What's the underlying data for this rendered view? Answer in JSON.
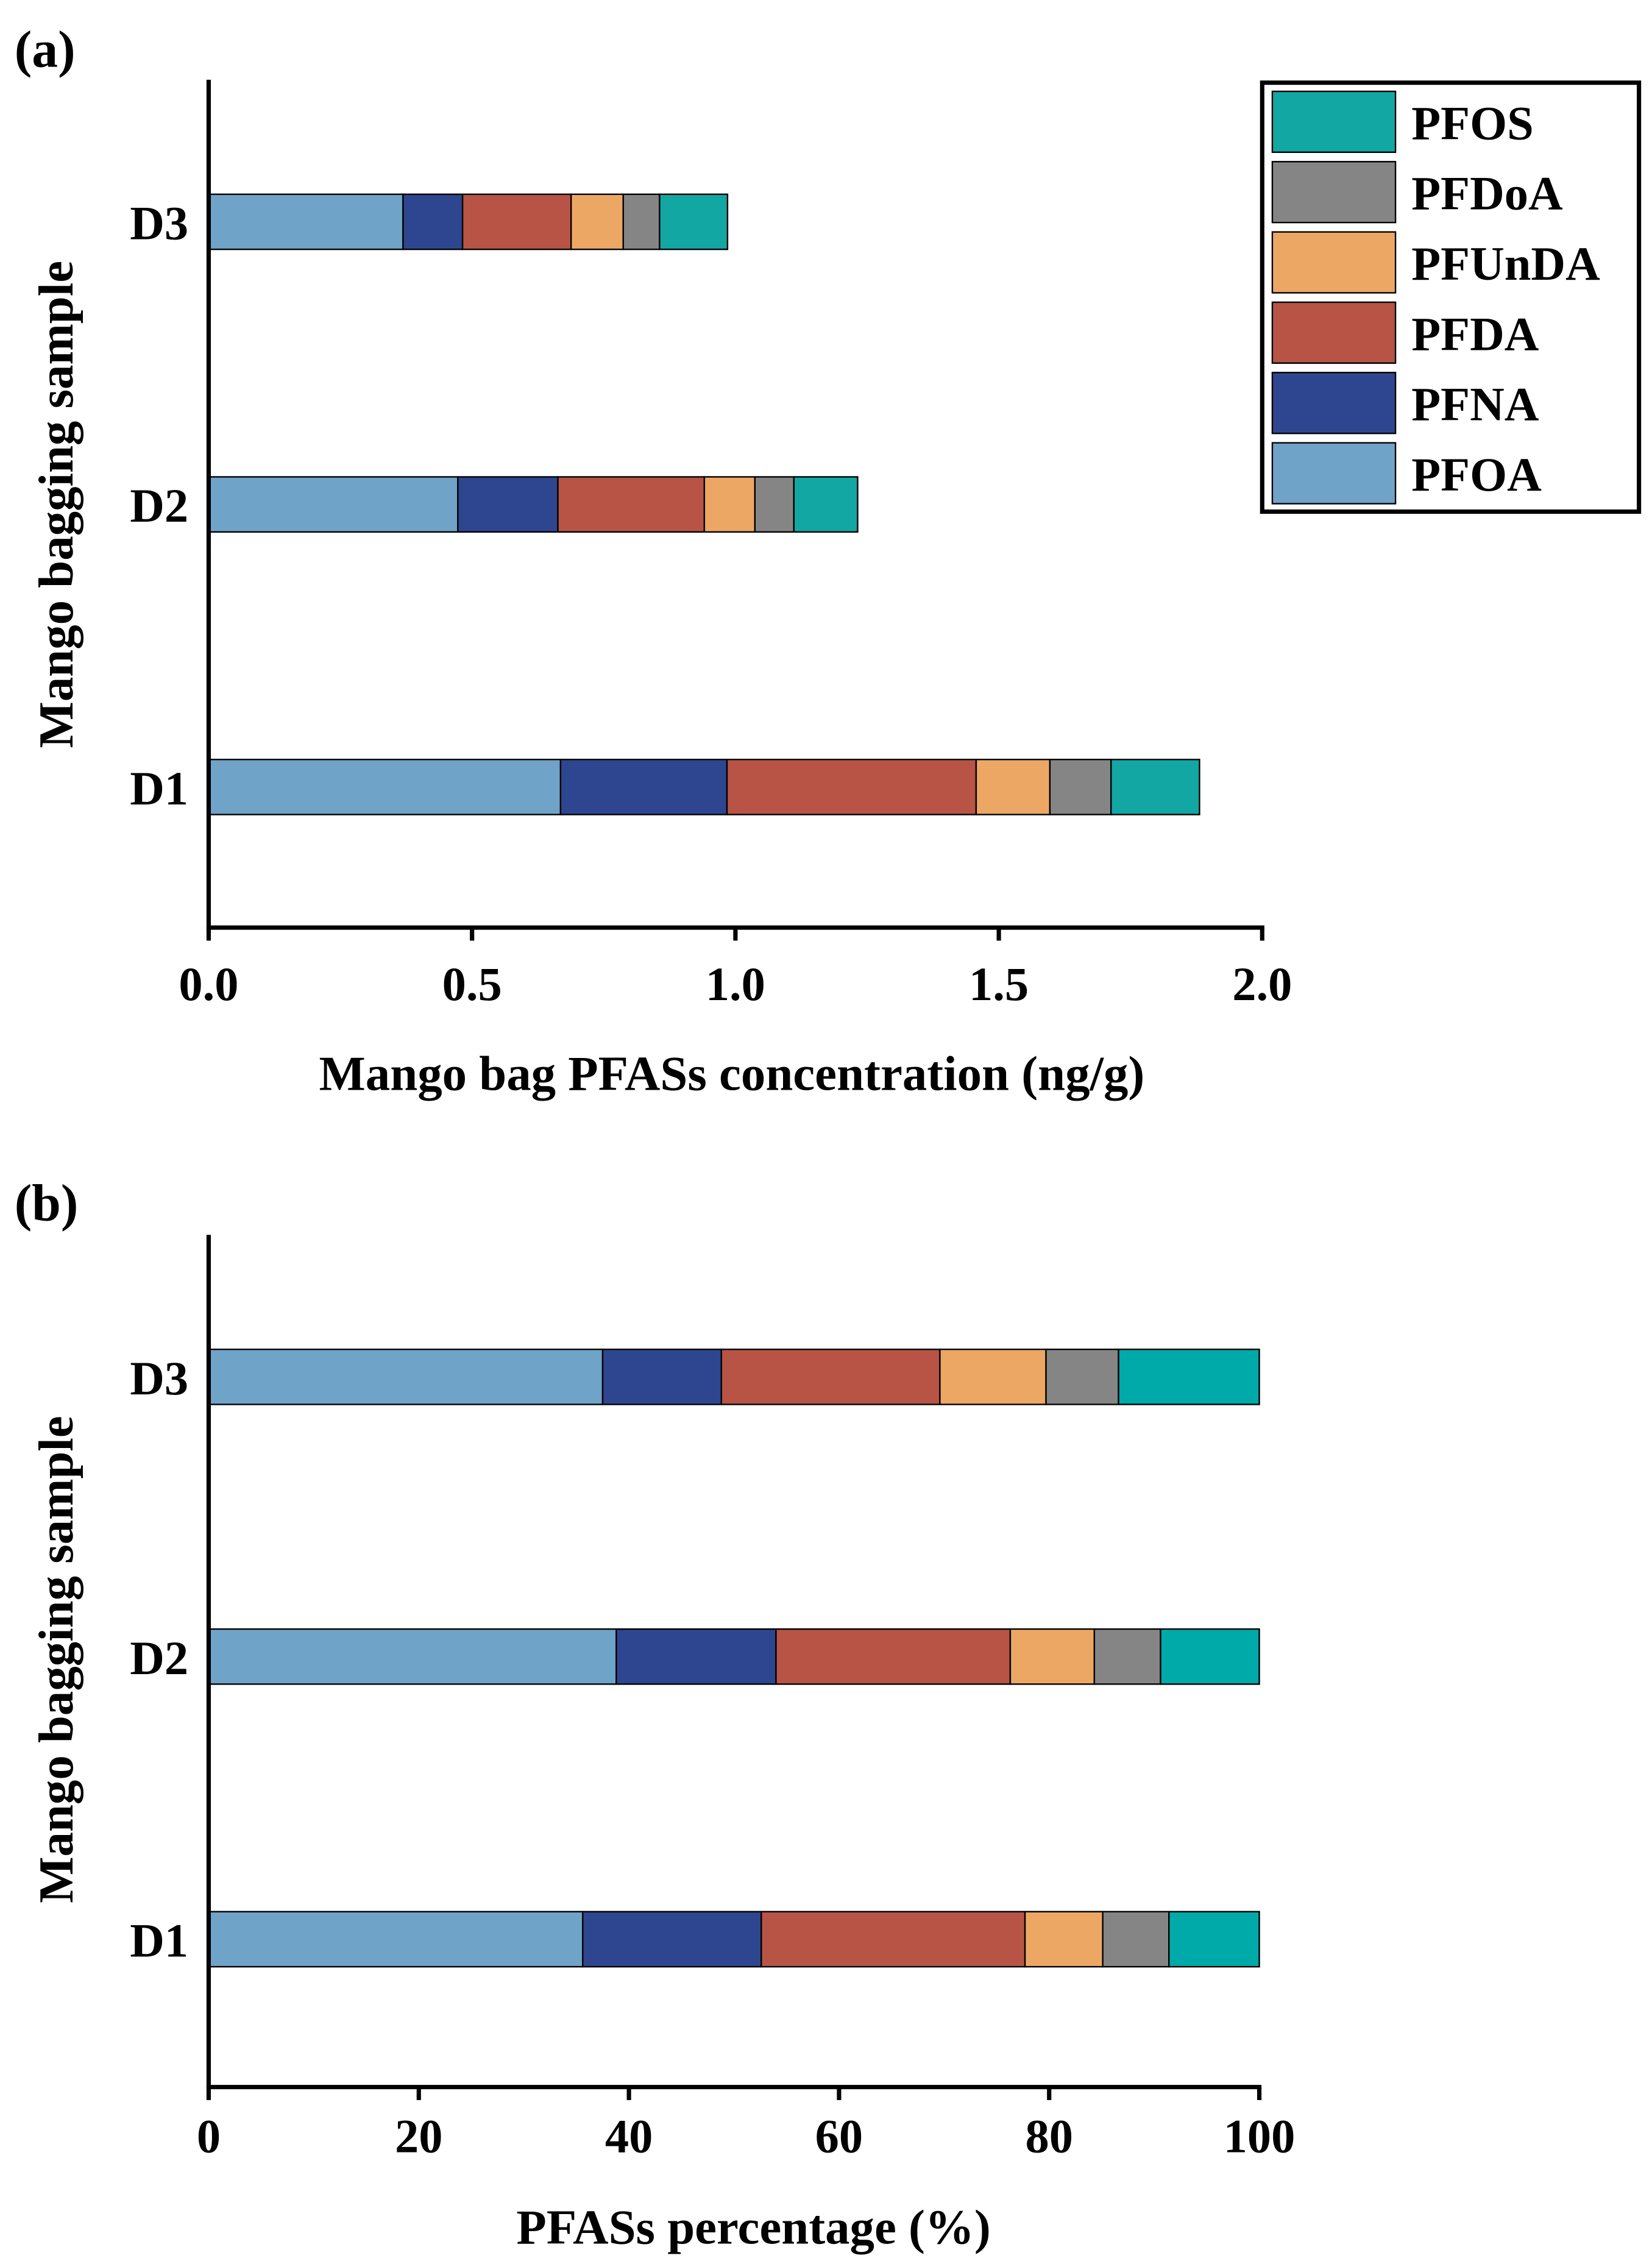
{
  "chart_data": [
    {
      "type": "bar",
      "orientation": "horizontal",
      "stacked": true,
      "panel_label": "(a)",
      "title": "",
      "xlabel": "Mango bag PFASs concentration (ng/g)",
      "ylabel": "Mango bagging sample",
      "xlim": [
        0,
        2.0
      ],
      "xticks": [
        "0.0",
        "0.5",
        "1.0",
        "1.5",
        "2.0"
      ],
      "categories": [
        "D1",
        "D2",
        "D3"
      ],
      "series": [
        {
          "name": "PFOA",
          "values": [
            0.668,
            0.473,
            0.369
          ]
        },
        {
          "name": "PFNA",
          "values": [
            0.316,
            0.19,
            0.113
          ]
        },
        {
          "name": "PFDA",
          "values": [
            0.473,
            0.278,
            0.206
          ]
        },
        {
          "name": "PFUnDA",
          "values": [
            0.14,
            0.096,
            0.099
          ]
        },
        {
          "name": "PFDoA",
          "values": [
            0.116,
            0.074,
            0.069
          ]
        },
        {
          "name": "PFOS",
          "values": [
            0.168,
            0.121,
            0.129
          ]
        }
      ],
      "legend": {
        "placement": "top-right",
        "entries": [
          "PFOS",
          "PFDoA",
          "PFUnDA",
          "PFDA",
          "PFNA",
          "PFOA"
        ]
      },
      "grid": false
    },
    {
      "type": "bar",
      "orientation": "horizontal",
      "stacked": true,
      "panel_label": "(b)",
      "title": "",
      "xlabel": "PFASs percentage (%)",
      "ylabel": "Mango bagging sample",
      "xlim": [
        0,
        100
      ],
      "xticks": [
        "0",
        "20",
        "40",
        "60",
        "80",
        "100"
      ],
      "categories": [
        "D1",
        "D2",
        "D3"
      ],
      "series": [
        {
          "name": "PFOA",
          "values": [
            35.6,
            38.8,
            37.5
          ]
        },
        {
          "name": "PFNA",
          "values": [
            17.0,
            15.2,
            11.3
          ]
        },
        {
          "name": "PFDA",
          "values": [
            25.1,
            22.3,
            20.8
          ]
        },
        {
          "name": "PFUnDA",
          "values": [
            7.4,
            8.0,
            10.1
          ]
        },
        {
          "name": "PFDoA",
          "values": [
            6.3,
            6.3,
            6.9
          ]
        },
        {
          "name": "PFOS",
          "values": [
            8.6,
            9.4,
            13.4
          ]
        }
      ],
      "grid": false
    }
  ],
  "colors": {
    "PFOA": "#6fa3c8",
    "PFNA": "#2e4690",
    "PFDA": "#b85446",
    "PFUnDA": "#eda764",
    "PFDoA": "#858585",
    "PFOS": "#12a7a3"
  }
}
